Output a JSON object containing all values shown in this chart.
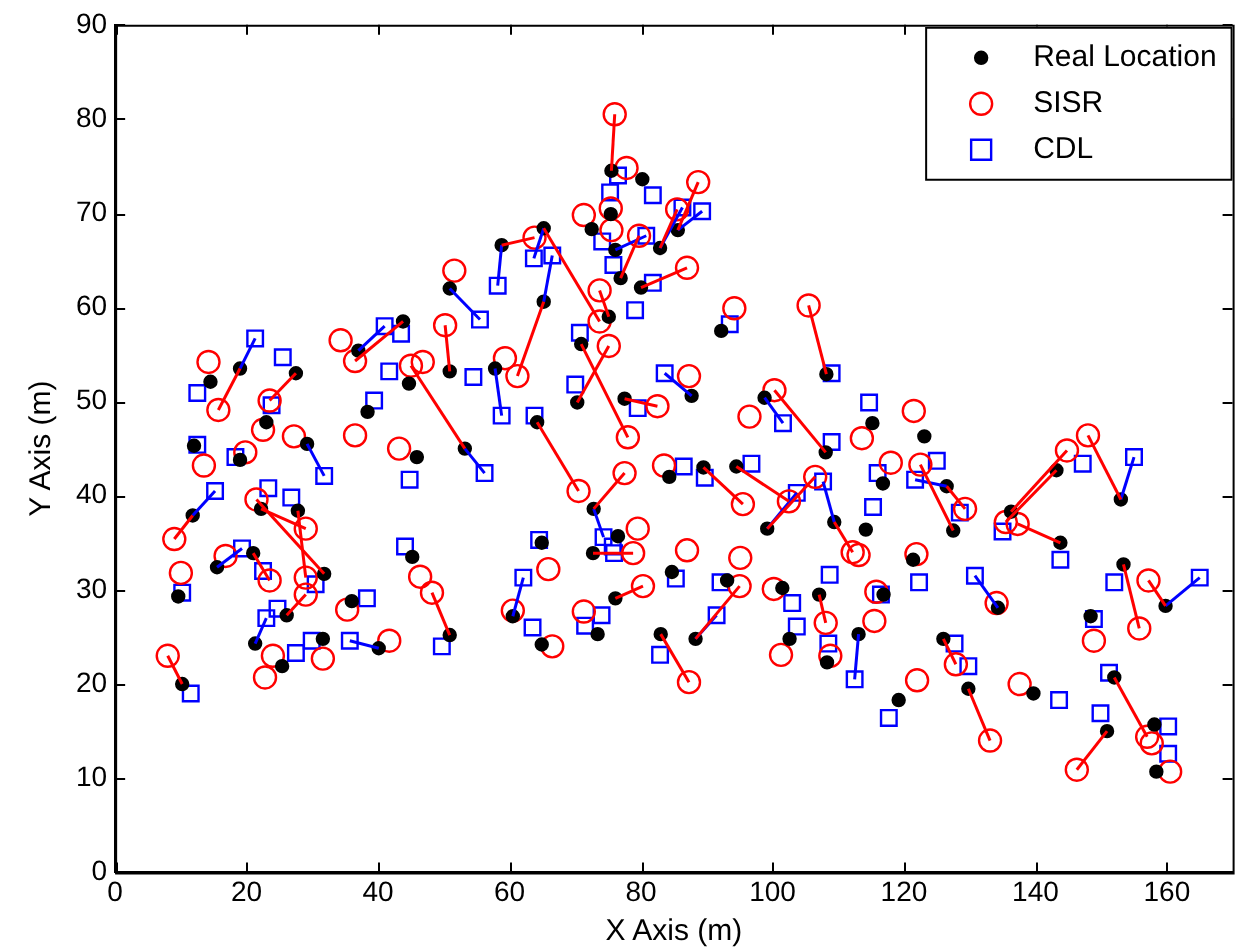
{
  "chart_data": {
    "type": "scatter",
    "xlabel": "X Axis (m)",
    "ylabel": "Y Axis (m)",
    "xlim": [
      0,
      170
    ],
    "xticks": [
      0,
      20,
      40,
      60,
      80,
      100,
      120,
      140,
      160
    ],
    "ylim": [
      0,
      90
    ],
    "yticks": [
      0,
      10,
      20,
      30,
      40,
      50,
      60,
      70,
      80,
      90
    ],
    "grid": false,
    "legend": "top right",
    "series": [
      {
        "name": "Real Location",
        "color": "#000000",
        "marker": "circle",
        "x": [
          10.2,
          9.6,
          11.8,
          14.5,
          19,
          12,
          27.5,
          23,
          29.2,
          38.4,
          37,
          43.8,
          44.7,
          53.2,
          50.9,
          50.9,
          58.8,
          65.2,
          65.2,
          57.8,
          64.2,
          75.5,
          80.2,
          75.4,
          72.5,
          76.1,
          76.9,
          80,
          82.9,
          85.6,
          75.1,
          70.9,
          70.3,
          77.5,
          87.7,
          92.2,
          108.2,
          98.8,
          108.1,
          115.2,
          123.1,
          72.8,
          76.5,
          72.7,
          64.9,
          60.5,
          64.9,
          76.1,
          73.4,
          84.7,
          83,
          88.3,
          93.1,
          84.3,
          89.5,
          94.5,
          99.2,
          101.5,
          102.6,
          107.1,
          108.3,
          109.4,
          114.2,
          116.8,
          126.5,
          127.5,
          136.3,
          143.8,
          143.2,
          153,
          153.4,
          159.8,
          148.4,
          134.3,
          126,
          129.8,
          139.7,
          152,
          150.9,
          158.1,
          158.4,
          119.2,
          121.4,
          116.9,
          113.1,
          15.5,
          21,
          22.2,
          27.8,
          31.8,
          26.1,
          21.3,
          25.4,
          31.6,
          40.1,
          36,
          45.2,
          50.9,
          45.9,
          19
        ],
        "values": [
          20,
          29.3,
          37.9,
          52.1,
          53.5,
          45.3,
          53,
          47.8,
          45.5,
          48.9,
          55.4,
          58.5,
          51.9,
          45,
          62,
          53.2,
          66.6,
          68.4,
          60.6,
          53.5,
          47.8,
          74.5,
          73.6,
          69.9,
          68.3,
          66.1,
          63.1,
          62.1,
          66.3,
          68.2,
          59,
          56.1,
          49.9,
          50.3,
          50.6,
          57.5,
          52.9,
          50.4,
          44.6,
          47.7,
          46.3,
          38.6,
          35.7,
          33.9,
          35,
          27.2,
          24.2,
          29.1,
          25.3,
          31.9,
          25.3,
          24.8,
          31,
          42,
          43,
          43.1,
          36.5,
          30.2,
          24.8,
          29.5,
          22.3,
          37.2,
          36.4,
          41.3,
          41,
          36.3,
          38.3,
          35,
          42.7,
          39.6,
          32.7,
          28.3,
          27.2,
          28.1,
          24.8,
          19.5,
          19,
          20.7,
          15,
          15.7,
          10.7,
          18.3,
          33.2,
          29.5,
          25.3,
          32.4,
          33.9,
          38.6,
          38.4,
          31.7,
          27.3,
          24.3,
          21.9,
          24.8,
          23.8,
          28.8,
          33.5,
          25.2,
          44.1,
          43.8
        ]
      },
      {
        "name": "SISR",
        "color": "#ff0000",
        "marker": "circle",
        "x": [
          8,
          10,
          9,
          14.2,
          15.7,
          13.5,
          23.5,
          22.5,
          27.2,
          36.5,
          34.3,
          36.5,
          46.8,
          45,
          51.6,
          50.2,
          63.8,
          73.7,
          61.2,
          59.3,
          70.5,
          76,
          77.8,
          75.4,
          71.3,
          75.5,
          79.7,
          87,
          85.5,
          88.7,
          73.7,
          78,
          75.1,
          82.5,
          87.3,
          94.2,
          105.5,
          96.5,
          100.3,
          113.6,
          121.5,
          77.5,
          79.5,
          78.8,
          65.9,
          60.5,
          66.5,
          80.3,
          71.3,
          87,
          87.3,
          95,
          95.1,
          83.5,
          95.5,
          102.5,
          106.5,
          100.2,
          101.3,
          108.1,
          108.8,
          112.2,
          113.1,
          118,
          129.3,
          122.5,
          144.8,
          137.3,
          135.5,
          148,
          155.8,
          157.2,
          148.9,
          134.1,
          127.9,
          133.1,
          137.6,
          157,
          146.3,
          157.7,
          160.5,
          122,
          121.9,
          115.8,
          115.5,
          16.8,
          23.5,
          29,
          29,
          21.5,
          29,
          24,
          22.8,
          31.6,
          41.7,
          35.3,
          46.4,
          48.2,
          43.2,
          19.8
        ],
        "values": [
          23,
          31.8,
          35.4,
          54.2,
          49.1,
          43.2,
          50.1,
          47,
          46.3,
          46.4,
          56.5,
          54.3,
          54.2,
          53.8,
          63.9,
          58.1,
          67.4,
          58.5,
          52.7,
          54.6,
          40.5,
          80.5,
          74.8,
          70.5,
          69.8,
          68.2,
          67.6,
          64.2,
          70.4,
          73.3,
          61.8,
          46.2,
          55.9,
          49.5,
          52.7,
          59.9,
          60.2,
          48.4,
          51.2,
          46.1,
          49,
          42.4,
          36.5,
          33.9,
          32.2,
          27.8,
          24,
          30.4,
          27.7,
          34.2,
          20.2,
          30.4,
          33.4,
          43.2,
          39.1,
          39.4,
          42,
          30.1,
          23.1,
          26.5,
          23,
          34,
          33.7,
          43.5,
          38.6,
          43.3,
          44.8,
          37,
          37.2,
          46.4,
          25.9,
          31,
          24.6,
          28.6,
          22.1,
          14,
          20,
          14.4,
          10.9,
          13.7,
          10.7,
          20.4,
          33.8,
          29.8,
          26.7,
          33.6,
          31,
          36.5,
          31.3,
          39.6,
          29.5,
          23,
          20.7,
          22.7,
          24.6,
          27.9,
          31.4,
          29.7,
          45,
          44.6
        ]
      },
      {
        "name": "CDL",
        "color": "#0000ff",
        "marker": "square",
        "x": [
          11.5,
          10.2,
          15.2,
          12.5,
          21.3,
          12.5,
          25.5,
          23.8,
          31.8,
          39.4,
          41,
          43.5,
          41.7,
          56.2,
          55.5,
          54.5,
          58.2,
          63.7,
          66.5,
          58.8,
          63.8,
          76.5,
          81.8,
          75.3,
          74.1,
          80.8,
          75.8,
          81.8,
          86.3,
          89.3,
          79.1,
          70.7,
          70,
          79.5,
          83.6,
          93.5,
          109,
          101.6,
          109,
          114.7,
          125,
          74.3,
          75.7,
          75.9,
          64.5,
          62.1,
          63.5,
          74,
          71.5,
          85.3,
          82.9,
          91.5,
          92.1,
          86.5,
          89.7,
          96.8,
          103.7,
          103,
          103.7,
          108.7,
          108.5,
          107.7,
          115.3,
          116,
          121.7,
          128.5,
          135,
          143.8,
          147.2,
          155,
          152,
          165,
          148.9,
          130.8,
          127.7,
          129.8,
          143.6,
          151.2,
          149.9,
          160.2,
          160.2,
          117.7,
          122.3,
          116.5,
          112.5,
          19.3,
          22.5,
          23.3,
          26.8,
          30.5,
          24.7,
          23,
          27.5,
          29.9,
          35.7,
          38.3,
          44.1,
          49.7,
          44.8,
          18.3
        ],
        "values": [
          19,
          29.7,
          40.5,
          50.9,
          56.7,
          45.4,
          54.7,
          49.6,
          42.1,
          50.1,
          58,
          57.2,
          53.2,
          42.4,
          58.7,
          52.6,
          62.3,
          65.2,
          65.5,
          48.5,
          48.5,
          74,
          71.9,
          72.2,
          67,
          67.6,
          64.5,
          62.6,
          70.6,
          70.2,
          59.7,
          57.3,
          51.8,
          49.3,
          53,
          58.2,
          53,
          47.7,
          45.7,
          49.9,
          43.7,
          35.6,
          34.6,
          33.9,
          35.3,
          31.3,
          26,
          27.3,
          26.2,
          31.2,
          23.1,
          27.3,
          30.8,
          43.1,
          41.9,
          43.4,
          40.3,
          28.6,
          26.1,
          31.6,
          24.3,
          41.5,
          38.8,
          42.4,
          41.7,
          38.2,
          36.2,
          33.2,
          43.4,
          44.1,
          30.8,
          31.3,
          26.9,
          31.5,
          24.3,
          21.9,
          18.3,
          21.2,
          16.9,
          15.5,
          12.6,
          16.4,
          30.8,
          29.5,
          20.5,
          34.4,
          32,
          40.8,
          39.8,
          30.6,
          28,
          27,
          23.3,
          24.6,
          24.6,
          29.1,
          34.6,
          24,
          41.7,
          44.1
        ]
      },
      {
        "type": "line",
        "color": "#ff0000",
        "x": [
          10.2,
          8
        ],
        "values": [
          20,
          23
        ]
      },
      {
        "type": "line",
        "color": "#ff0000",
        "x": [
          11.8,
          9
        ],
        "values": [
          37.9,
          35.4
        ]
      },
      {
        "type": "line",
        "color": "#ff0000",
        "x": [
          19,
          15.7
        ],
        "values": [
          53.5,
          49.1
        ]
      },
      {
        "type": "line",
        "color": "#ff0000",
        "x": [
          27.5,
          23.5
        ],
        "values": [
          53,
          50.1
        ]
      },
      {
        "type": "line",
        "color": "#ff0000",
        "x": [
          43.8,
          36.5
        ],
        "values": [
          58.5,
          54.3
        ]
      },
      {
        "type": "line",
        "color": "#ff0000",
        "x": [
          53.2,
          45
        ],
        "values": [
          45,
          53.8
        ]
      },
      {
        "type": "line",
        "color": "#ff0000",
        "x": [
          50.9,
          50.2
        ],
        "values": [
          53.2,
          58.1
        ]
      },
      {
        "type": "line",
        "color": "#ff0000",
        "x": [
          58.8,
          63.8
        ],
        "values": [
          66.6,
          67.4
        ]
      },
      {
        "type": "line",
        "color": "#ff0000",
        "x": [
          65.2,
          73.7
        ],
        "values": [
          68.4,
          58.5
        ]
      },
      {
        "type": "line",
        "color": "#ff0000",
        "x": [
          65.2,
          61.2
        ],
        "values": [
          60.6,
          52.7
        ]
      },
      {
        "type": "line",
        "color": "#ff0000",
        "x": [
          64.2,
          70.5
        ],
        "values": [
          47.8,
          40.5
        ]
      },
      {
        "type": "line",
        "color": "#ff0000",
        "x": [
          75.5,
          76
        ],
        "values": [
          74.5,
          80.5
        ]
      },
      {
        "type": "line",
        "color": "#ff0000",
        "x": [
          76.9,
          79.7
        ],
        "values": [
          63.1,
          67.6
        ]
      },
      {
        "type": "line",
        "color": "#ff0000",
        "x": [
          80,
          87
        ],
        "values": [
          62.1,
          64.2
        ]
      },
      {
        "type": "line",
        "color": "#ff0000",
        "x": [
          82.9,
          85.5
        ],
        "values": [
          66.3,
          70.4
        ]
      },
      {
        "type": "line",
        "color": "#ff0000",
        "x": [
          85.6,
          88.7
        ],
        "values": [
          68.2,
          73.3
        ]
      },
      {
        "type": "line",
        "color": "#ff0000",
        "x": [
          75.1,
          73.7
        ],
        "values": [
          59,
          61.8
        ]
      },
      {
        "type": "line",
        "color": "#ff0000",
        "x": [
          70.9,
          78
        ],
        "values": [
          56.1,
          46.2
        ]
      },
      {
        "type": "line",
        "color": "#ff0000",
        "x": [
          70.3,
          75.1
        ],
        "values": [
          49.9,
          55.9
        ]
      },
      {
        "type": "line",
        "color": "#ff0000",
        "x": [
          77.5,
          82.5
        ],
        "values": [
          50.3,
          49.5
        ]
      },
      {
        "type": "line",
        "color": "#ff0000",
        "x": [
          108.2,
          105.5
        ],
        "values": [
          52.9,
          60.2
        ]
      },
      {
        "type": "line",
        "color": "#ff0000",
        "x": [
          108.1,
          100.3
        ],
        "values": [
          44.6,
          51.2
        ]
      },
      {
        "type": "line",
        "color": "#ff0000",
        "x": [
          72.8,
          77.5
        ],
        "values": [
          38.6,
          42.4
        ]
      },
      {
        "type": "line",
        "color": "#ff0000",
        "x": [
          72.7,
          78.8
        ],
        "values": [
          33.9,
          33.9
        ]
      },
      {
        "type": "line",
        "color": "#ff0000",
        "x": [
          76.1,
          80.3
        ],
        "values": [
          29.1,
          30.4
        ]
      },
      {
        "type": "line",
        "color": "#ff0000",
        "x": [
          83,
          87.3
        ],
        "values": [
          25.3,
          20.2
        ]
      },
      {
        "type": "line",
        "color": "#ff0000",
        "x": [
          88.3,
          95
        ],
        "values": [
          24.8,
          30.4
        ]
      },
      {
        "type": "line",
        "color": "#ff0000",
        "x": [
          89.5,
          95.5
        ],
        "values": [
          43,
          39.1
        ]
      },
      {
        "type": "line",
        "color": "#ff0000",
        "x": [
          94.5,
          102.5
        ],
        "values": [
          43.1,
          39.4
        ]
      },
      {
        "type": "line",
        "color": "#ff0000",
        "x": [
          99.2,
          106.5
        ],
        "values": [
          36.5,
          42
        ]
      },
      {
        "type": "line",
        "color": "#ff0000",
        "x": [
          107.1,
          108.1
        ],
        "values": [
          29.5,
          26.5
        ]
      },
      {
        "type": "line",
        "color": "#ff0000",
        "x": [
          109.4,
          112.2
        ],
        "values": [
          37.2,
          34
        ]
      },
      {
        "type": "line",
        "color": "#ff0000",
        "x": [
          126.5,
          129.3
        ],
        "values": [
          41,
          38.6
        ]
      },
      {
        "type": "line",
        "color": "#ff0000",
        "x": [
          127.5,
          122.5
        ],
        "values": [
          36.3,
          43.3
        ]
      },
      {
        "type": "line",
        "color": "#ff0000",
        "x": [
          136.3,
          144.8
        ],
        "values": [
          38.3,
          44.8
        ]
      },
      {
        "type": "line",
        "color": "#ff0000",
        "x": [
          143.8,
          137.3
        ],
        "values": [
          35,
          37
        ]
      },
      {
        "type": "line",
        "color": "#ff0000",
        "x": [
          143.2,
          135.5
        ],
        "values": [
          42.7,
          37.2
        ]
      },
      {
        "type": "line",
        "color": "#ff0000",
        "x": [
          153,
          148
        ],
        "values": [
          39.6,
          46.4
        ]
      },
      {
        "type": "line",
        "color": "#ff0000",
        "x": [
          153.4,
          155.8
        ],
        "values": [
          32.7,
          25.9
        ]
      },
      {
        "type": "line",
        "color": "#ff0000",
        "x": [
          159.8,
          157.2
        ],
        "values": [
          28.3,
          31
        ]
      },
      {
        "type": "line",
        "color": "#ff0000",
        "x": [
          126,
          127.9
        ],
        "values": [
          24.8,
          22.1
        ]
      },
      {
        "type": "line",
        "color": "#ff0000",
        "x": [
          129.8,
          133.1
        ],
        "values": [
          19.5,
          14
        ]
      },
      {
        "type": "line",
        "color": "#ff0000",
        "x": [
          152,
          157
        ],
        "values": [
          20.7,
          14.4
        ]
      },
      {
        "type": "line",
        "color": "#ff0000",
        "x": [
          150.9,
          146.3
        ],
        "values": [
          15,
          10.9
        ]
      },
      {
        "type": "line",
        "color": "#ff0000",
        "x": [
          21,
          23.5
        ],
        "values": [
          33.9,
          31
        ]
      },
      {
        "type": "line",
        "color": "#ff0000",
        "x": [
          22.2,
          29
        ],
        "values": [
          38.6,
          36.5
        ]
      },
      {
        "type": "line",
        "color": "#ff0000",
        "x": [
          27.8,
          29
        ],
        "values": [
          38.4,
          31.3
        ]
      },
      {
        "type": "line",
        "color": "#ff0000",
        "x": [
          31.8,
          21.5
        ],
        "values": [
          31.7,
          39.6
        ]
      },
      {
        "type": "line",
        "color": "#ff0000",
        "x": [
          26.1,
          29
        ],
        "values": [
          27.3,
          29.5
        ]
      },
      {
        "type": "line",
        "color": "#ff0000",
        "x": [
          50.9,
          48.2
        ],
        "values": [
          25.2,
          29.7
        ]
      },
      {
        "type": "line",
        "color": "#0000ff",
        "x": [
          11.8,
          15.2
        ],
        "values": [
          37.9,
          40.5
        ]
      },
      {
        "type": "line",
        "color": "#0000ff",
        "x": [
          19,
          21.3
        ],
        "values": [
          53.5,
          56.7
        ]
      },
      {
        "type": "line",
        "color": "#0000ff",
        "x": [
          29.2,
          31.8
        ],
        "values": [
          45.5,
          42.1
        ]
      },
      {
        "type": "line",
        "color": "#0000ff",
        "x": [
          37,
          41
        ],
        "values": [
          55.4,
          58
        ]
      },
      {
        "type": "line",
        "color": "#0000ff",
        "x": [
          53.2,
          56.2
        ],
        "values": [
          45,
          42.4
        ]
      },
      {
        "type": "line",
        "color": "#0000ff",
        "x": [
          50.9,
          55.5
        ],
        "values": [
          62,
          58.7
        ]
      },
      {
        "type": "line",
        "color": "#0000ff",
        "x": [
          58.8,
          58.2
        ],
        "values": [
          66.6,
          62.3
        ]
      },
      {
        "type": "line",
        "color": "#0000ff",
        "x": [
          65.2,
          63.7
        ],
        "values": [
          68.4,
          65.2
        ]
      },
      {
        "type": "line",
        "color": "#0000ff",
        "x": [
          65.2,
          66.5
        ],
        "values": [
          60.6,
          65.5
        ]
      },
      {
        "type": "line",
        "color": "#0000ff",
        "x": [
          57.8,
          58.8
        ],
        "values": [
          53.5,
          48.5
        ]
      },
      {
        "type": "line",
        "color": "#0000ff",
        "x": [
          76.1,
          80.8
        ],
        "values": [
          66.1,
          67.6
        ]
      },
      {
        "type": "line",
        "color": "#0000ff",
        "x": [
          82.9,
          86.3
        ],
        "values": [
          66.3,
          70.6
        ]
      },
      {
        "type": "line",
        "color": "#0000ff",
        "x": [
          85.6,
          89.3
        ],
        "values": [
          68.2,
          70.2
        ]
      },
      {
        "type": "line",
        "color": "#0000ff",
        "x": [
          87.7,
          83.6
        ],
        "values": [
          50.6,
          53
        ]
      },
      {
        "type": "line",
        "color": "#0000ff",
        "x": [
          98.8,
          101.6
        ],
        "values": [
          50.4,
          47.7
        ]
      },
      {
        "type": "line",
        "color": "#0000ff",
        "x": [
          72.8,
          74.3
        ],
        "values": [
          38.6,
          35.6
        ]
      },
      {
        "type": "line",
        "color": "#0000ff",
        "x": [
          60.5,
          62.1
        ],
        "values": [
          27.2,
          31.3
        ]
      },
      {
        "type": "line",
        "color": "#0000ff",
        "x": [
          88.3,
          91.5
        ],
        "values": [
          24.8,
          27.3
        ]
      },
      {
        "type": "line",
        "color": "#0000ff",
        "x": [
          99.2,
          103.7
        ],
        "values": [
          36.5,
          40.3
        ]
      },
      {
        "type": "line",
        "color": "#0000ff",
        "x": [
          109.4,
          107.7
        ],
        "values": [
          37.2,
          41.5
        ]
      },
      {
        "type": "line",
        "color": "#0000ff",
        "x": [
          126.5,
          121.7
        ],
        "values": [
          41,
          41.7
        ]
      },
      {
        "type": "line",
        "color": "#0000ff",
        "x": [
          153,
          155
        ],
        "values": [
          39.6,
          44.1
        ]
      },
      {
        "type": "line",
        "color": "#0000ff",
        "x": [
          159.8,
          165
        ],
        "values": [
          28.3,
          31.3
        ]
      },
      {
        "type": "line",
        "color": "#0000ff",
        "x": [
          134.3,
          130.8
        ],
        "values": [
          28.1,
          31.5
        ]
      },
      {
        "type": "line",
        "color": "#0000ff",
        "x": [
          113.1,
          112.5
        ],
        "values": [
          25.3,
          20.5
        ]
      },
      {
        "type": "line",
        "color": "#0000ff",
        "x": [
          15.5,
          19.3
        ],
        "values": [
          32.4,
          34.4
        ]
      },
      {
        "type": "line",
        "color": "#0000ff",
        "x": [
          21.3,
          23
        ],
        "values": [
          24.3,
          27
        ]
      },
      {
        "type": "line",
        "color": "#0000ff",
        "x": [
          40.1,
          35.7
        ],
        "values": [
          23.8,
          24.6
        ]
      }
    ]
  }
}
